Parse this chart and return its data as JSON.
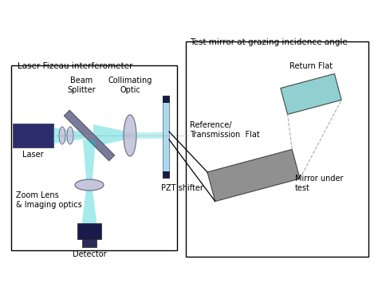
{
  "bg_color": "#ffffff",
  "fig_w": 4.74,
  "fig_h": 3.55,
  "left_label": "Laser Fizeau interferometer",
  "right_label": "Test mirror at grazing incidence angle",
  "laser_label": "Laser",
  "beam_splitter_label": "Beam\nSplitter",
  "collimating_label": "Collimating\nOptic",
  "pzt_label": "PZT shifter",
  "ref_flat_label": "Reference/\nTransmission  Flat",
  "return_flat_label": "Return Flat",
  "mirror_under_label": "Mirror under\ntest",
  "zoom_lens_label": "Zoom Lens\n& Imaging optics",
  "detector_label": "Detector",
  "laser_color": "#2d2d6e",
  "beam_teal": "#00c8c8",
  "lens_color": "#b0b0cc",
  "fizeau_color": "#b0d8e8",
  "return_flat_color": "#90d0d0",
  "mirror_color": "#909090",
  "pzt_color": "#1a1a4a",
  "dark_blue": "#1a1a4a"
}
